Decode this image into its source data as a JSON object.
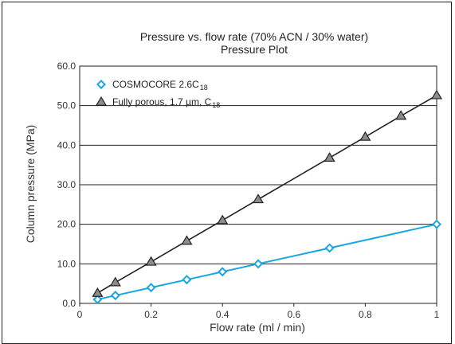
{
  "chart_data": {
    "type": "line",
    "title": "Pressure vs. flow rate (70% ACN / 30% water)",
    "subtitle": "Pressure Plot",
    "xlabel": "Flow rate (ml / min)",
    "ylabel": "Column pressure (MPa)",
    "xlim": [
      0,
      1
    ],
    "ylim": [
      0,
      60
    ],
    "xticks": [
      0,
      0.2,
      0.4,
      0.6,
      0.8,
      1
    ],
    "xtick_labels": [
      "0",
      "0.2",
      "0.4",
      "0.6",
      "0.8",
      "1"
    ],
    "yticks": [
      0,
      10,
      20,
      30,
      40,
      50,
      60
    ],
    "ytick_labels": [
      "0.0",
      "10.0",
      "20.0",
      "30.0",
      "40.0",
      "50.0",
      "60.0"
    ],
    "grid": "horizontal",
    "legend_position": "top-left",
    "series": [
      {
        "name": "COSMOCORE 2.6C",
        "name_subscript": "18",
        "marker": "diamond",
        "color": "#1aa6e0",
        "x": [
          0.05,
          0.1,
          0.2,
          0.3,
          0.4,
          0.5,
          0.7,
          1.0
        ],
        "y": [
          1.0,
          2.0,
          4.0,
          6.0,
          8.0,
          10.0,
          14.0,
          20.0
        ]
      },
      {
        "name": "Fully porous, 1.7 µm, C",
        "name_subscript": "18",
        "marker": "triangle",
        "color": "#222222",
        "marker_fill": "#8c8c8c",
        "x": [
          0.05,
          0.1,
          0.2,
          0.3,
          0.4,
          0.5,
          0.7,
          0.8,
          0.9,
          1.0
        ],
        "y": [
          2.6,
          5.3,
          10.5,
          15.8,
          21.0,
          26.3,
          36.8,
          42.1,
          47.4,
          52.6
        ]
      }
    ]
  }
}
